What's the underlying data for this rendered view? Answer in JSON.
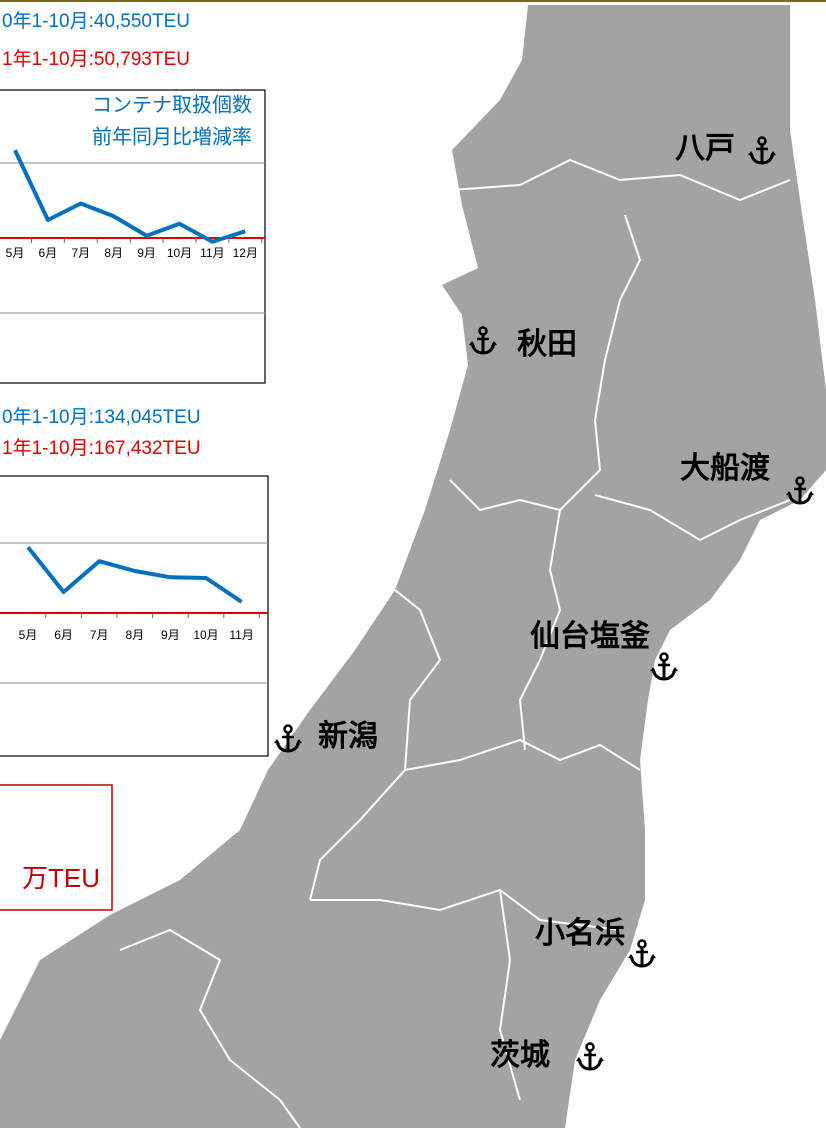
{
  "chart_data": [
    {
      "type": "line",
      "categories": [
        "5月",
        "6月",
        "7月",
        "8月",
        "9月",
        "10月",
        "11月",
        "12月"
      ],
      "series": [
        {
          "name": "コンテナ取扱個数",
          "color": "#0070c0",
          "values": [
            11.7,
            2.4,
            4.6,
            2.9,
            0.3,
            1.9,
            -0.5,
            0.9
          ]
        }
      ],
      "y_label": "前年同月比増減率",
      "ylim": [
        -20,
        20
      ],
      "grid_lines": [
        -10,
        10
      ],
      "reference_line": {
        "value": 0,
        "color": "#e00000"
      },
      "annotations": [
        {
          "text": "0年1-10月:40,550TEU",
          "color": "#0070c0"
        },
        {
          "text": "1年1-10月:50,793TEU",
          "color": "#e00000"
        }
      ]
    },
    {
      "type": "line",
      "categories": [
        "5月",
        "6月",
        "7月",
        "8月",
        "9月",
        "10月",
        "11月"
      ],
      "series": [
        {
          "color": "#0070c0",
          "values": [
            9.4,
            3.0,
            7.4,
            6.0,
            5.1,
            5.0,
            1.6
          ]
        }
      ],
      "ylim": [
        -20,
        20
      ],
      "grid_lines": [
        -10,
        10
      ],
      "reference_line": {
        "value": 0,
        "color": "#e00000"
      },
      "annotations": [
        {
          "text": "0年1-10月:134,045TEU",
          "color": "#0070c0"
        },
        {
          "text": "1年1-10月:167,432TEU",
          "color": "#e00000"
        }
      ]
    }
  ],
  "total_box": {
    "text": "万TEU"
  },
  "map": {
    "ports": [
      "八戸",
      "秋田",
      "大船渡",
      "仙台塩釜",
      "新潟",
      "小名浜",
      "茨城"
    ]
  }
}
